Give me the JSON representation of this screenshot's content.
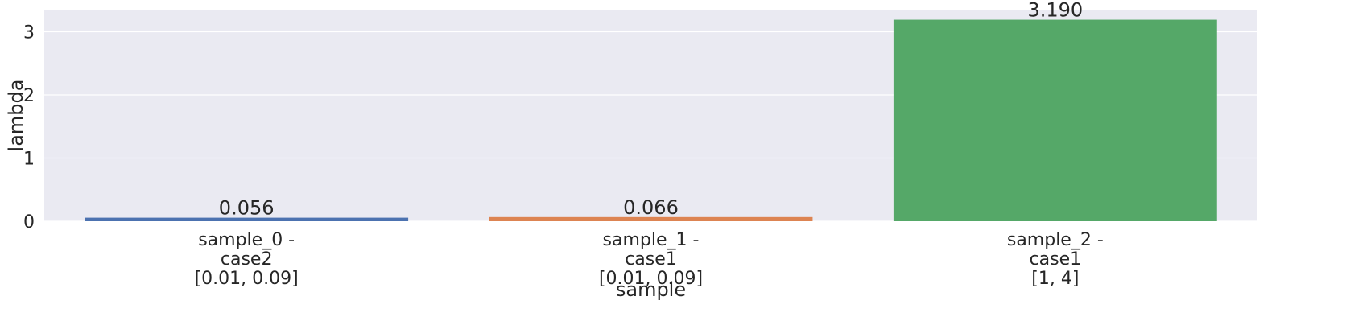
{
  "chart_data": {
    "type": "bar",
    "categories": [
      "sample_0 -\ncase2\n[0.01, 0.09]",
      "sample_1 -\ncase1\n[0.01, 0.09]",
      "sample_2 -\ncase1\n[1, 4]"
    ],
    "values": [
      0.056,
      0.066,
      3.19
    ],
    "data_labels": [
      "0.056",
      "0.066",
      "3.190"
    ],
    "colors": [
      "#4c72b0",
      "#dd8452",
      "#55a868"
    ],
    "xlabel": "sample",
    "ylabel": "lambda",
    "ylim": [
      0,
      3.35
    ],
    "yticks": [
      0,
      1,
      2,
      3
    ],
    "grid": true,
    "background": "#eaeaf2"
  }
}
